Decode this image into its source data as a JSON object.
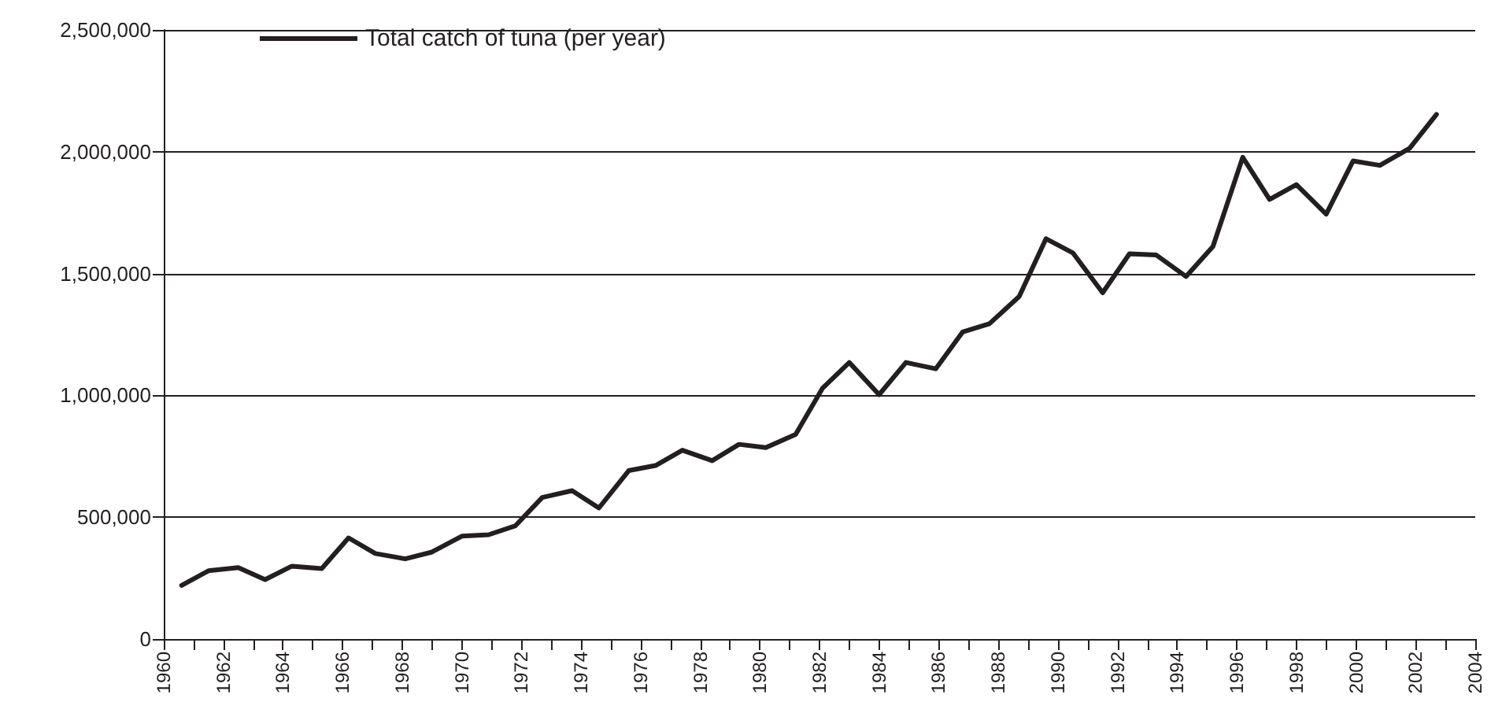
{
  "chart_data": {
    "type": "line",
    "legend": "top left",
    "grid": "y",
    "marker": "none",
    "line_style": "solid",
    "xlim": [
      1960,
      2004
    ],
    "xticks": [
      1960,
      {
        "value": 1961,
        "label": null
      },
      1962,
      {
        "value": 1963,
        "label": null
      },
      1964,
      {
        "value": 1965,
        "label": null
      },
      1966,
      {
        "value": 1967,
        "label": null
      },
      1968,
      {
        "value": 1969,
        "label": null
      },
      1970,
      {
        "value": 1971,
        "label": null
      },
      1972,
      {
        "value": 1973,
        "label": null
      },
      1974,
      {
        "value": 1975,
        "label": null
      },
      1976,
      {
        "value": 1977,
        "label": null
      },
      1978,
      {
        "value": 1979,
        "label": null
      },
      1980,
      {
        "value": 1981,
        "label": null
      },
      1982,
      {
        "value": 1983,
        "label": null
      },
      1984,
      {
        "value": 1985,
        "label": null
      },
      1986,
      {
        "value": 1987,
        "label": null
      },
      1988,
      {
        "value": 1989,
        "label": null
      },
      1990,
      {
        "value": 1991,
        "label": null
      },
      1992,
      {
        "value": 1993,
        "label": null
      },
      1994,
      {
        "value": 1995,
        "label": null
      },
      1996,
      {
        "value": 1997,
        "label": null
      },
      1998,
      {
        "value": 1999,
        "label": null
      },
      2000,
      {
        "value": 2001,
        "label": null
      },
      2002,
      {
        "value": 2003,
        "label": null
      },
      2004
    ],
    "ylim": [
      0,
      2500000
    ],
    "yticks": [
      0,
      {
        "value": 500000,
        "label": "500,000"
      },
      {
        "value": 1000000,
        "label": "1,000,000"
      },
      {
        "value": 1500000,
        "label": "1,500,000"
      },
      {
        "value": 2000000,
        "label": "2,000,000"
      },
      {
        "value": 2500000,
        "label": "2,500,000"
      }
    ],
    "x": [
      1960.6,
      1961.5,
      1962.5,
      1963.4,
      1964.3,
      1965.3,
      1966.2,
      1967.1,
      1968.1,
      1969.0,
      1970.0,
      1970.9,
      1971.8,
      1972.7,
      1973.7,
      1974.6,
      1975.6,
      1976.5,
      1977.4,
      1978.4,
      1979.3,
      1980.2,
      1981.2,
      1982.1,
      1983.0,
      1984.0,
      1984.9,
      1985.9,
      1986.8,
      1987.7,
      1988.7,
      1989.6,
      1990.5,
      1991.5,
      1992.4,
      1993.3,
      1994.3,
      1995.2,
      1996.2,
      1997.1,
      1998.0,
      1999.0,
      1999.9,
      2000.8,
      2001.8,
      2002.7
    ],
    "series": [
      {
        "name": "Total catch of tuna (per year)",
        "color": "#231f20",
        "values": [
          220000,
          280000,
          293000,
          244000,
          299000,
          289000,
          415000,
          351000,
          329000,
          357000,
          422000,
          428000,
          465000,
          581000,
          609000,
          538000,
          691000,
          712000,
          775000,
          732000,
          799000,
          786000,
          840000,
          1029000,
          1135000,
          1003000,
          1135000,
          1109000,
          1260000,
          1294000,
          1406000,
          1643000,
          1585000,
          1421000,
          1581000,
          1576000,
          1488000,
          1611000,
          1977000,
          1804000,
          1865000,
          1744000,
          1962000,
          1944000,
          2014000,
          2153000
        ]
      }
    ]
  }
}
